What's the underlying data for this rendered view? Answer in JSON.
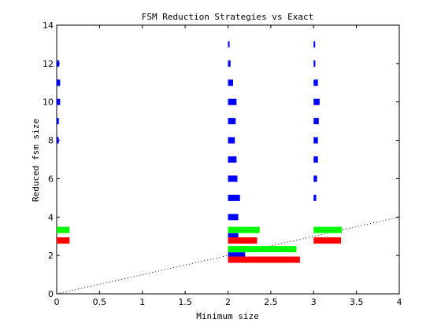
{
  "chart_data": {
    "type": "bar",
    "orientation": "horizontal",
    "title": "FSM Reduction Strategies vs Exact",
    "xlabel": "Minimum size",
    "ylabel": "Reduced fsm size",
    "xlim": [
      0,
      4
    ],
    "ylim": [
      0,
      14
    ],
    "xticks": [
      0,
      0.5,
      1,
      1.5,
      2,
      2.5,
      3,
      3.5,
      4
    ],
    "xtick_labels": [
      "0",
      "0.5",
      "1",
      "1.5",
      "2",
      "2.5",
      "3",
      "3.5",
      "4"
    ],
    "yticks": [
      0,
      2,
      4,
      6,
      8,
      10,
      12,
      14
    ],
    "ytick_labels": [
      "0",
      "2",
      "4",
      "6",
      "8",
      "10",
      "12",
      "14"
    ],
    "grid": false,
    "reference_line": {
      "style": "dotted",
      "color": "#000000",
      "x": [
        0,
        4
      ],
      "y": [
        0,
        4
      ]
    },
    "series": [
      {
        "color": "#0000ff",
        "bars": [
          {
            "x": 0,
            "y": 12,
            "len": 0.03
          },
          {
            "x": 0,
            "y": 11,
            "len": 0.04
          },
          {
            "x": 0,
            "y": 10,
            "len": 0.04
          },
          {
            "x": 0,
            "y": 9,
            "len": 0.025
          },
          {
            "x": 0,
            "y": 8,
            "len": 0.025
          },
          {
            "x": 2,
            "y": 13,
            "len": 0.015
          },
          {
            "x": 2,
            "y": 12,
            "len": 0.03
          },
          {
            "x": 2,
            "y": 11,
            "len": 0.06
          },
          {
            "x": 2,
            "y": 10,
            "len": 0.1
          },
          {
            "x": 2,
            "y": 9,
            "len": 0.09
          },
          {
            "x": 2,
            "y": 8,
            "len": 0.08
          },
          {
            "x": 2,
            "y": 7,
            "len": 0.1
          },
          {
            "x": 2,
            "y": 6,
            "len": 0.11
          },
          {
            "x": 2,
            "y": 5,
            "len": 0.14
          },
          {
            "x": 2,
            "y": 4,
            "len": 0.12
          },
          {
            "x": 2,
            "y": 3,
            "len": 0.12
          },
          {
            "x": 2,
            "y": 2,
            "len": 0.2
          },
          {
            "x": 3,
            "y": 13,
            "len": 0.01
          },
          {
            "x": 3,
            "y": 12,
            "len": 0.02
          },
          {
            "x": 3,
            "y": 11,
            "len": 0.05
          },
          {
            "x": 3,
            "y": 10,
            "len": 0.07
          },
          {
            "x": 3,
            "y": 9,
            "len": 0.06
          },
          {
            "x": 3,
            "y": 8,
            "len": 0.05
          },
          {
            "x": 3,
            "y": 7,
            "len": 0.05
          },
          {
            "x": 3,
            "y": 6,
            "len": 0.04
          },
          {
            "x": 3,
            "y": 5,
            "len": 0.03
          }
        ]
      },
      {
        "color": "#00ff00",
        "bars": [
          {
            "x": 0,
            "y": 3.33,
            "len": 0.15
          },
          {
            "x": 2,
            "y": 3.33,
            "len": 0.37
          },
          {
            "x": 2,
            "y": 2.33,
            "len": 0.8
          },
          {
            "x": 3,
            "y": 3.33,
            "len": 0.33
          }
        ]
      },
      {
        "color": "#ff0000",
        "bars": [
          {
            "x": 0,
            "y": 2.78,
            "len": 0.15
          },
          {
            "x": 2,
            "y": 2.78,
            "len": 0.34
          },
          {
            "x": 2,
            "y": 1.78,
            "len": 0.84
          },
          {
            "x": 3,
            "y": 2.78,
            "len": 0.32
          }
        ]
      }
    ]
  }
}
